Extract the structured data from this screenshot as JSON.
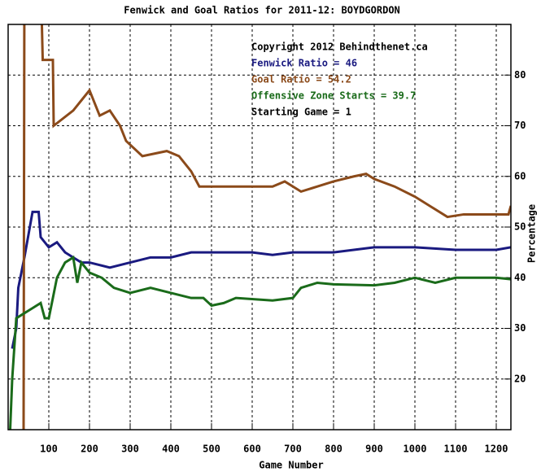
{
  "chart_data": {
    "type": "line",
    "title": "Fenwick and Goal Ratios for 2011-12: BOYDGORDON",
    "xlabel": "Game Number",
    "ylabel": "Percentage",
    "annotations": [
      "Copyright 2012 Behindthenet.ca",
      "Starting Game = 1"
    ],
    "xlim": [
      0,
      1236
    ],
    "ylim": [
      10,
      90
    ],
    "xticks": [
      100,
      200,
      300,
      400,
      500,
      600,
      700,
      800,
      900,
      1000,
      1100,
      1200
    ],
    "yticks": [
      20,
      30,
      40,
      50,
      60,
      70,
      80
    ],
    "grid": true,
    "series": [
      {
        "name": "Fenwick Ratio = 46",
        "color": "#1a1a80",
        "x": [
          10,
          20,
          25,
          40,
          60,
          75,
          80,
          100,
          120,
          140,
          160,
          180,
          200,
          250,
          300,
          350,
          400,
          450,
          500,
          600,
          650,
          700,
          800,
          900,
          1000,
          1100,
          1200,
          1236
        ],
        "values": [
          26,
          30,
          38,
          44,
          53,
          53,
          48,
          46,
          47,
          45,
          44,
          43,
          43,
          42,
          43,
          44,
          44,
          45,
          45,
          45,
          44.5,
          45,
          45,
          46,
          46,
          45.5,
          45.5,
          46
        ]
      },
      {
        "name": "Goal Ratio = 54.2",
        "color": "#8b4a1a",
        "x": [
          38,
          40,
          80,
          85,
          110,
          112,
          160,
          180,
          200,
          225,
          250,
          275,
          290,
          330,
          390,
          420,
          450,
          470,
          650,
          680,
          720,
          760,
          800,
          850,
          880,
          900,
          950,
          1000,
          1040,
          1080,
          1120,
          1230,
          1236
        ],
        "values": [
          10,
          100,
          100,
          83,
          83,
          70,
          73,
          75,
          77,
          72,
          73,
          70,
          67,
          64,
          65,
          64,
          61,
          58,
          58,
          59,
          57,
          58,
          59,
          60,
          60.5,
          59.5,
          58,
          56,
          54,
          52,
          52.5,
          52.5,
          54.2
        ]
      },
      {
        "name": "Offensive Zone Starts = 39.7",
        "color": "#1a6b1a",
        "x": [
          5,
          10,
          20,
          40,
          60,
          80,
          90,
          100,
          110,
          120,
          140,
          160,
          170,
          180,
          200,
          230,
          260,
          300,
          350,
          400,
          450,
          480,
          500,
          530,
          560,
          650,
          700,
          720,
          760,
          800,
          900,
          950,
          1000,
          1050,
          1100,
          1200,
          1236
        ],
        "values": [
          10,
          20,
          32,
          33,
          34,
          35,
          32,
          32,
          36,
          40,
          43,
          44,
          39,
          43,
          41,
          40,
          38,
          37,
          38,
          37,
          36,
          36,
          34.5,
          35,
          36,
          35.5,
          36,
          38,
          39,
          38.7,
          38.5,
          39,
          40,
          39,
          40,
          40,
          39.7
        ]
      }
    ]
  }
}
